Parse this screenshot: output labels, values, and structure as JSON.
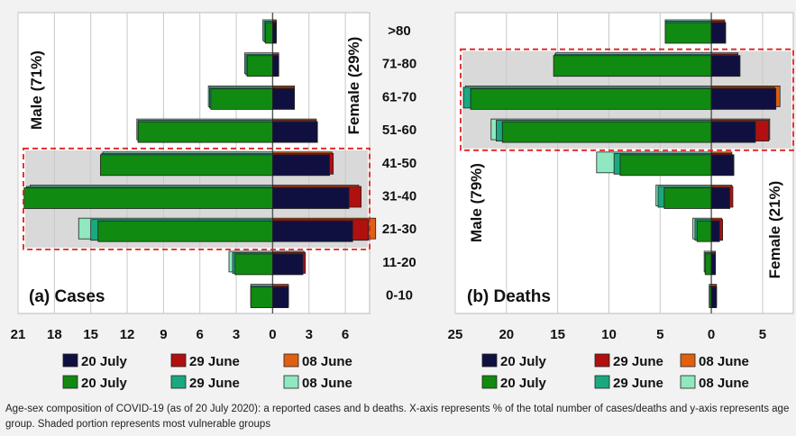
{
  "age_groups": [
    ">80",
    "71-80",
    "61-70",
    "51-60",
    "41-50",
    "31-40",
    "21-30",
    "11-20",
    "0-10"
  ],
  "colors": {
    "female_20_july": "#101040",
    "female_29_june": "#b01010",
    "female_08_june": "#e06010",
    "male_20_july": "#108a10",
    "male_29_june": "#1aa880",
    "male_08_june": "#90e8c0",
    "highlight_box": "#e02020",
    "shade": "#d9d9d9"
  },
  "legend": {
    "female_20_july": "20 July",
    "female_29_june": "29 June",
    "female_08_june": "08 June",
    "male_20_july": "20 July",
    "male_29_june": "29 June",
    "male_08_june": "08 June"
  },
  "chart_data": [
    {
      "type": "bar",
      "title": "(a) Cases",
      "male_label": "Male (71%)",
      "female_label": "Female (29%)",
      "xlim": [
        -21,
        8
      ],
      "x_ticks": [
        -21,
        -18,
        -15,
        -12,
        -9,
        -6,
        -3,
        0,
        3,
        6
      ],
      "x_tick_labels": [
        "21",
        "18",
        "15",
        "12",
        "9",
        "6",
        "3",
        "0",
        "3",
        "6"
      ],
      "shaded_groups": [
        "41-50",
        "31-40",
        "21-30"
      ],
      "series": {
        "male_08_june": [
          0.8,
          2.3,
          5.3,
          11.2,
          14.0,
          20.0,
          16.0,
          3.6,
          1.8
        ],
        "male_29_june": [
          0.7,
          2.2,
          5.2,
          11.1,
          14.1,
          20.3,
          15.0,
          3.3,
          1.8
        ],
        "male_20_july": [
          0.6,
          2.1,
          5.1,
          11.1,
          14.2,
          20.5,
          14.4,
          3.1,
          1.8
        ],
        "female_20_july": [
          0.3,
          0.5,
          1.8,
          3.7,
          4.7,
          6.3,
          6.6,
          2.5,
          1.3
        ],
        "female_29_june": [
          0.3,
          0.5,
          1.8,
          3.6,
          5.0,
          7.3,
          7.9,
          2.7,
          1.3
        ],
        "female_08_june": [
          0.3,
          0.5,
          1.8,
          3.6,
          4.9,
          7.1,
          8.5,
          2.6,
          1.3
        ]
      }
    },
    {
      "type": "bar",
      "title": "(b) Deaths",
      "male_label": "Male (79%)",
      "female_label": "Female (21%)",
      "xlim": [
        -25,
        8
      ],
      "x_ticks": [
        -25,
        -20,
        -15,
        -10,
        -5,
        0,
        5
      ],
      "x_tick_labels": [
        "25",
        "20",
        "15",
        "10",
        "5",
        "0",
        "5"
      ],
      "shaded_groups": [
        "71-80",
        "61-70",
        "51-60"
      ],
      "series": {
        "male_08_june": [
          4.5,
          15.2,
          24.0,
          21.5,
          11.2,
          5.4,
          1.8,
          0.7,
          0.2
        ],
        "male_29_june": [
          4.5,
          15.3,
          24.2,
          21.0,
          9.5,
          5.2,
          1.6,
          0.6,
          0.2
        ],
        "male_20_july": [
          4.5,
          15.4,
          23.5,
          20.4,
          8.9,
          4.6,
          1.4,
          0.6,
          0.2
        ],
        "female_20_july": [
          1.4,
          2.8,
          6.3,
          4.3,
          2.2,
          1.8,
          0.8,
          0.4,
          0.5
        ],
        "female_29_june": [
          1.3,
          2.6,
          6.2,
          5.6,
          2.0,
          2.1,
          1.1,
          0.4,
          0.5
        ],
        "female_08_june": [
          1.3,
          2.6,
          6.7,
          5.7,
          2.0,
          2.0,
          1.0,
          0.4,
          0.5
        ]
      }
    }
  ],
  "caption": "Age-sex composition of COVID-19 (as of 20 July 2020): a reported cases and b deaths. X-axis represents % of the total number of cases/deaths and y-axis represents age group. Shaded portion represents most vulnerable groups"
}
